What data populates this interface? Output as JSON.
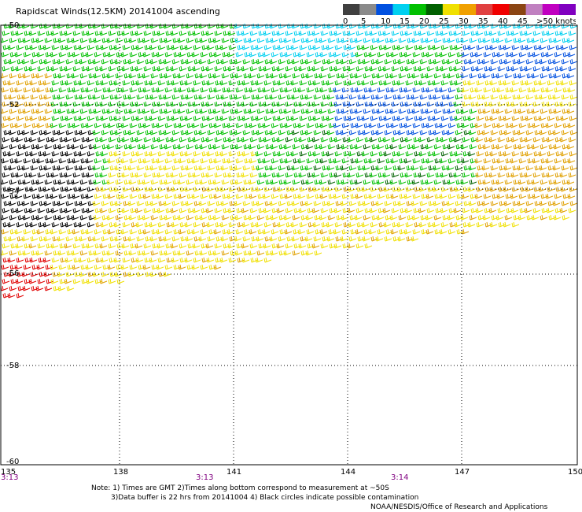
{
  "title": "Rapidscat Winds(12.5KM) 20141004 ascending",
  "legend": {
    "colors": [
      "#404040",
      "#8a8a8a",
      "#0050e0",
      "#00d0f0",
      "#00c000",
      "#006000",
      "#f0e000",
      "#f0a000",
      "#e04040",
      "#f00000",
      "#8b4513",
      "#c080c0",
      "#c000c0",
      "#8000c0"
    ],
    "tick_labels": [
      "0",
      "5",
      "10",
      "15",
      "20",
      "25",
      "30",
      "35",
      "40",
      "45",
      ">50 knots"
    ]
  },
  "axes": {
    "lon_labels": [
      "135",
      "138",
      "141",
      "144",
      "147",
      "150"
    ],
    "lat_labels": [
      "-50",
      "-52",
      "-54",
      "-56",
      "-58",
      "-60"
    ],
    "lon_range": [
      135,
      150
    ],
    "lat_range": [
      -50,
      -60
    ]
  },
  "times": [
    "3:13",
    "3:13",
    "3:14"
  ],
  "notes": [
    "Note: 1) Times are GMT 2)Times along bottom correspond to measurement at ~50S",
    "3)Data buffer is 22 hrs from 20141004 4) Black circles indicate possible contamination",
    "NOAA/NESDIS/Office of Research and Applications"
  ]
}
